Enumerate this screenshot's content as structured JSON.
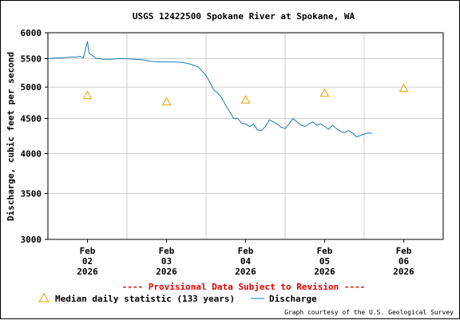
{
  "chart_data": {
    "type": "line",
    "title": "USGS 12422500 Spokane River at Spokane, WA",
    "ylabel": "Discharge, cubic feet per second",
    "xlabel": "",
    "y_scale": "log",
    "ylim": [
      3000,
      6000
    ],
    "y_ticks": [
      3000,
      3500,
      4000,
      4500,
      5000,
      5500,
      6000
    ],
    "y_tick_labels": [
      "3000",
      "3500",
      "4000",
      "4500",
      "5000",
      "5500",
      "6000"
    ],
    "xlim_days": [
      -0.5,
      4.5
    ],
    "x_ticks": [
      {
        "day": 0,
        "line1": "Feb",
        "line2": "02",
        "line3": "2026"
      },
      {
        "day": 1,
        "line1": "Feb",
        "line2": "03",
        "line3": "2026"
      },
      {
        "day": 2,
        "line1": "Feb",
        "line2": "04",
        "line3": "2026"
      },
      {
        "day": 3,
        "line1": "Feb",
        "line2": "05",
        "line3": "2026"
      },
      {
        "day": 4,
        "line1": "Feb",
        "line2": "06",
        "line3": "2026"
      }
    ],
    "x_gridlines_days": [
      0.5,
      1.5,
      2.5,
      3.5
    ],
    "grid": true,
    "series": [
      {
        "name": "Discharge",
        "color": "#1a7ab8",
        "kind": "line",
        "x": [
          -0.5,
          -0.4,
          -0.3,
          -0.2,
          -0.15,
          -0.1,
          -0.05,
          0,
          0.02,
          0.04,
          0.06,
          0.08,
          0.1,
          0.15,
          0.2,
          0.3,
          0.4,
          0.5,
          0.6,
          0.7,
          0.8,
          0.9,
          1.0,
          1.1,
          1.2,
          1.3,
          1.4,
          1.5,
          1.55,
          1.6,
          1.65,
          1.7,
          1.75,
          1.8,
          1.85,
          1.9,
          1.95,
          2.0,
          2.05,
          2.1,
          2.15,
          2.2,
          2.25,
          2.3,
          2.35,
          2.4,
          2.45,
          2.5,
          2.55,
          2.6,
          2.65,
          2.7,
          2.75,
          2.8,
          2.85,
          2.9,
          2.95,
          3.0,
          3.05,
          3.1,
          3.15,
          3.2,
          3.25,
          3.3,
          3.35,
          3.4,
          3.45,
          3.5,
          3.55,
          3.6
        ],
        "y": [
          5500,
          5510,
          5520,
          5530,
          5530,
          5540,
          5520,
          5830,
          5600,
          5580,
          5560,
          5540,
          5510,
          5500,
          5490,
          5490,
          5500,
          5500,
          5490,
          5480,
          5450,
          5440,
          5440,
          5440,
          5430,
          5400,
          5350,
          5200,
          5080,
          4950,
          4900,
          4820,
          4700,
          4600,
          4500,
          4500,
          4430,
          4420,
          4380,
          4420,
          4330,
          4320,
          4380,
          4480,
          4450,
          4420,
          4370,
          4350,
          4420,
          4500,
          4450,
          4400,
          4380,
          4420,
          4450,
          4400,
          4420,
          4380,
          4340,
          4400,
          4350,
          4310,
          4290,
          4320,
          4290,
          4230,
          4250,
          4270,
          4290,
          4280
        ]
      },
      {
        "name": "Median daily statistic (133 years)",
        "color": "#e8a000",
        "kind": "marker-triangle",
        "x": [
          0,
          1,
          2,
          3,
          4
        ],
        "y": [
          4860,
          4760,
          4790,
          4900,
          4980
        ]
      }
    ],
    "annotation": "---- Provisional Data Subject to Revision ----",
    "credit": "Graph courtesy of the U.S. Geological Survey"
  }
}
